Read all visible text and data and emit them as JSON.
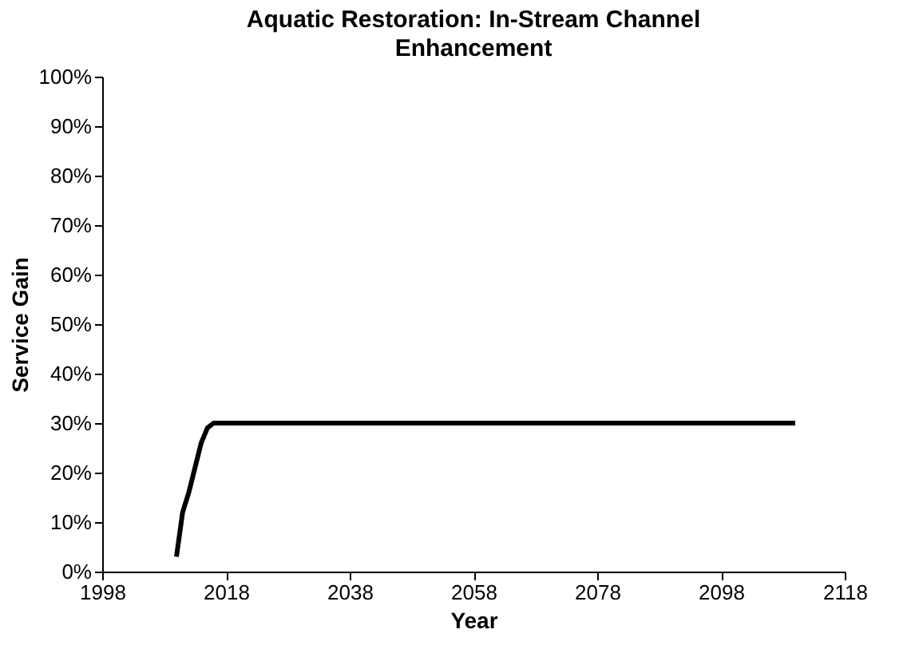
{
  "chart_data": {
    "type": "line",
    "title": "Aquatic Restoration: In-Stream Channel Enhancement",
    "xlabel": "Year",
    "ylabel": "Service Gain",
    "series": [
      {
        "color": "#000000",
        "x": [
          2010,
          2011,
          2012,
          2013,
          2014,
          2015,
          2016,
          2110
        ],
        "values": [
          3,
          12,
          16,
          21,
          26,
          29,
          30,
          30
        ]
      }
    ],
    "xlim": [
      1998,
      2118
    ],
    "xticks": [
      1998,
      2018,
      2038,
      2058,
      2078,
      2098,
      2118
    ],
    "ylim": [
      0,
      100
    ],
    "yticks": [
      {
        "value": 0,
        "label": "0%"
      },
      {
        "value": 10,
        "label": "10%"
      },
      {
        "value": 20,
        "label": "20%"
      },
      {
        "value": 30,
        "label": "30%"
      },
      {
        "value": 40,
        "label": "40%"
      },
      {
        "value": 50,
        "label": "50%"
      },
      {
        "value": 60,
        "label": "60%"
      },
      {
        "value": 70,
        "label": "70%"
      },
      {
        "value": 80,
        "label": "80%"
      },
      {
        "value": 90,
        "label": "90%"
      },
      {
        "value": 100,
        "label": "100%"
      }
    ],
    "grid": false,
    "marker": "none",
    "line_style": "solid"
  }
}
